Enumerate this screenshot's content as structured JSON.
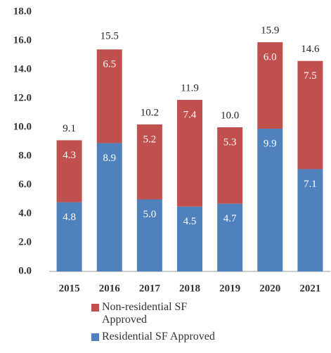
{
  "chart_data": {
    "type": "stacked-bar",
    "categories": [
      "2015",
      "2016",
      "2017",
      "2018",
      "2019",
      "2020",
      "2021"
    ],
    "series": [
      {
        "name": "Residential SF Approved",
        "color": "#4f81bd",
        "values": [
          4.8,
          8.9,
          5,
          4.5,
          4.7,
          9.9,
          7.1
        ],
        "value_labels": [
          "4.8",
          "8.9",
          "5.0",
          "4.5",
          "4.7",
          "9.9",
          "7.1"
        ]
      },
      {
        "name": "Non-residential SF Approved",
        "color": "#c0504d",
        "values": [
          4.3,
          6.5,
          5.2,
          7.4,
          5.3,
          6,
          7.5
        ],
        "value_labels": [
          "4.3",
          "6.5",
          "5.2",
          "7.4",
          "5.3",
          "6.0",
          "7.5"
        ]
      }
    ],
    "totals": {
      "values": [
        9.1,
        15.5,
        10.2,
        11.9,
        10,
        15.9,
        14.6
      ],
      "value_labels": [
        "9.1",
        "15.5",
        "10.2",
        "11.9",
        "10.0",
        "15.9",
        "14.6"
      ]
    },
    "ylim": [
      0,
      18
    ],
    "yticks": [
      {
        "value": 0,
        "label": "0.0"
      },
      {
        "value": 2,
        "label": "2.0"
      },
      {
        "value": 4,
        "label": "4.0"
      },
      {
        "value": 6,
        "label": "6.0"
      },
      {
        "value": 8,
        "label": "8.0"
      },
      {
        "value": 10,
        "label": "10.0"
      },
      {
        "value": 12,
        "label": "12.0"
      },
      {
        "value": 14,
        "label": "14.0"
      },
      {
        "value": 16,
        "label": "16.0"
      },
      {
        "value": 18,
        "label": "18.0"
      }
    ],
    "grid": false
  }
}
